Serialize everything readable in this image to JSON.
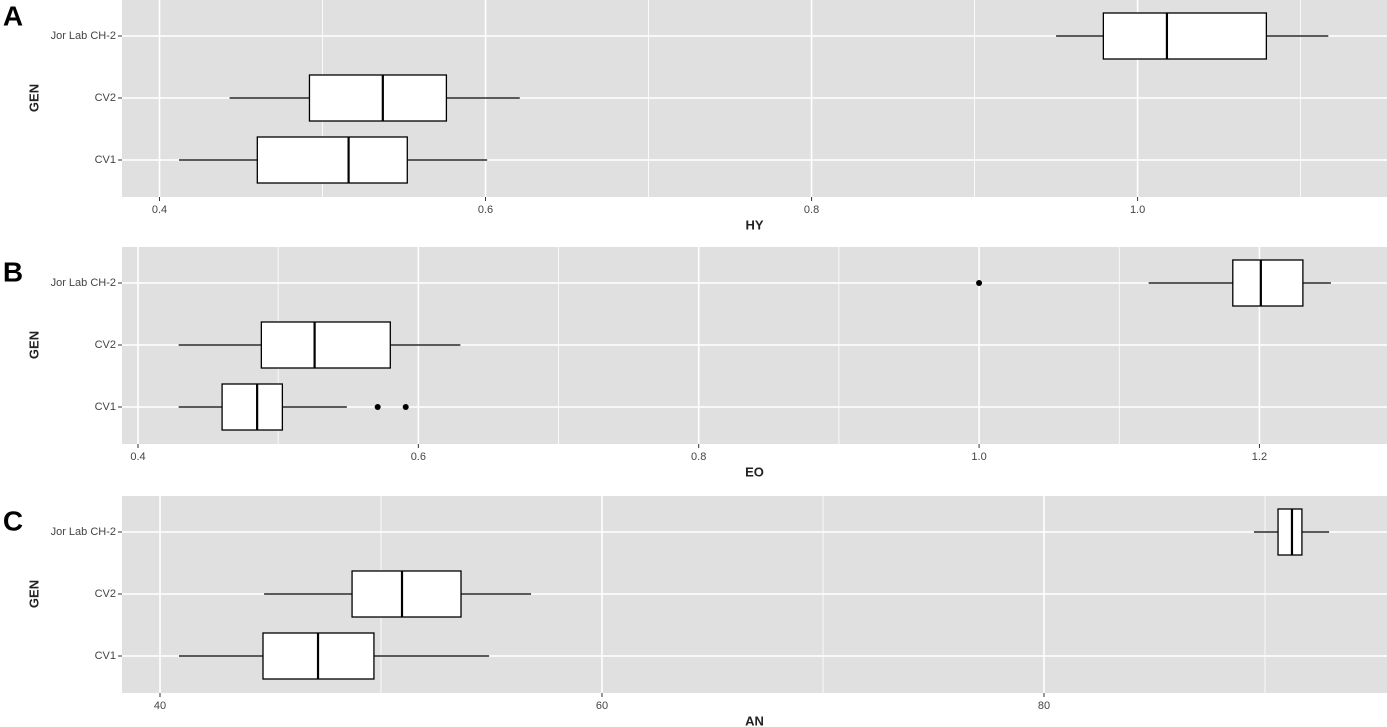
{
  "chart_data": [
    {
      "type": "box",
      "panel_label": "A",
      "xlabel": "HY",
      "ylabel": "GEN",
      "categories": [
        "CV1",
        "CV2",
        "Jor Lab CH-2"
      ],
      "boxes": [
        {
          "min": 0.412,
          "q1": 0.46,
          "median": 0.516,
          "q3": 0.552,
          "max": 0.601,
          "outliers": []
        },
        {
          "min": 0.443,
          "q1": 0.492,
          "median": 0.537,
          "q3": 0.576,
          "max": 0.621,
          "outliers": []
        },
        {
          "min": 0.95,
          "q1": 0.979,
          "median": 1.018,
          "q3": 1.079,
          "max": 1.117,
          "outliers": []
        }
      ],
      "xlim": [
        0.377,
        1.153
      ],
      "xticks": [
        0.4,
        0.6,
        0.8,
        {
          "value": 1,
          "label": "1.0"
        }
      ],
      "minor_xticks": [
        0.5,
        0.7,
        0.9,
        1.1
      ],
      "grid": true
    },
    {
      "type": "box",
      "panel_label": "B",
      "xlabel": "EO",
      "ylabel": "GEN",
      "categories": [
        "CV1",
        "CV2",
        "Jor Lab CH-2"
      ],
      "boxes": [
        {
          "min": 0.429,
          "q1": 0.46,
          "median": 0.485,
          "q3": 0.503,
          "max": 0.549,
          "outliers": [
            0.571,
            0.591
          ]
        },
        {
          "min": 0.429,
          "q1": 0.488,
          "median": 0.526,
          "q3": 0.58,
          "max": 0.63,
          "outliers": []
        },
        {
          "min": 1.121,
          "q1": 1.181,
          "median": 1.201,
          "q3": 1.231,
          "max": 1.251,
          "outliers": [
            1.0
          ]
        }
      ],
      "xlim": [
        0.3886,
        1.291
      ],
      "xticks": [
        0.4,
        0.6,
        0.8,
        {
          "value": 1,
          "label": "1.0"
        },
        1.2
      ],
      "minor_xticks": [
        0.5,
        0.7,
        0.9,
        1.1
      ],
      "grid": true
    },
    {
      "type": "box",
      "panel_label": "C",
      "xlabel": "AN",
      "ylabel": "GEN",
      "categories": [
        "CV1",
        "CV2",
        "Jor Lab CH-2"
      ],
      "boxes": [
        {
          "min": 40.86,
          "q1": 44.66,
          "median": 47.15,
          "q3": 49.68,
          "max": 54.89,
          "outliers": []
        },
        {
          "min": 44.71,
          "q1": 48.69,
          "median": 50.95,
          "q3": 53.62,
          "max": 56.79,
          "outliers": []
        },
        {
          "min": 89.5,
          "q1": 90.59,
          "median": 91.22,
          "q3": 91.67,
          "max": 92.9,
          "outliers": []
        }
      ],
      "xlim": [
        38.28,
        95.52
      ],
      "xticks": [
        40,
        60,
        80
      ],
      "minor_xticks": [
        50,
        70,
        90
      ],
      "grid": true
    }
  ]
}
